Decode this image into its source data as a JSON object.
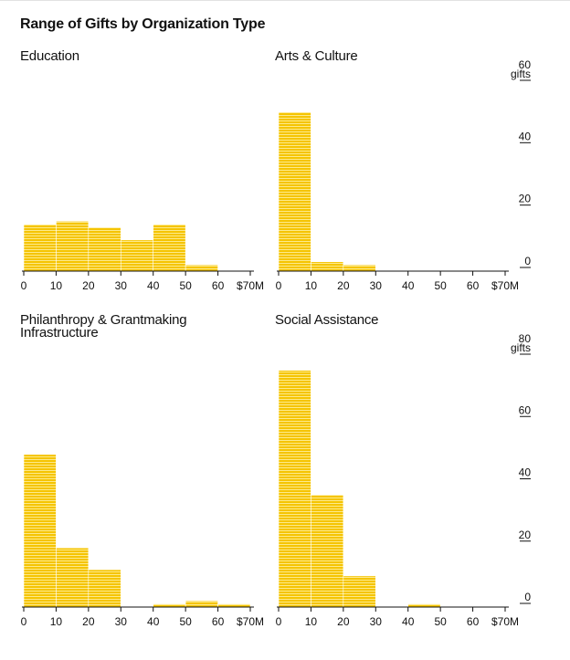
{
  "chart_data": {
    "type": "bar",
    "title": "Range of Gifts by Organization Type",
    "bar_color": "#f5c400",
    "bar_line_color": "#ffffff",
    "axis_color": "#111111",
    "x_ticks": [
      "0",
      "10",
      "20",
      "30",
      "40",
      "50",
      "60",
      "$70M"
    ],
    "panels": [
      {
        "name": "Education",
        "title_lines": [
          "Education"
        ],
        "bins": [
          [
            0,
            10
          ],
          [
            10,
            20
          ],
          [
            20,
            30
          ],
          [
            30,
            40
          ],
          [
            40,
            50
          ],
          [
            50,
            60
          ],
          [
            60,
            70
          ]
        ],
        "values": [
          15,
          16,
          14,
          10,
          15,
          2,
          0
        ],
        "ylim": [
          0,
          60
        ],
        "y_ticks": [],
        "y_unit": ""
      },
      {
        "name": "Arts & Culture",
        "title_lines": [
          "Arts & Culture"
        ],
        "bins": [
          [
            0,
            10
          ],
          [
            10,
            20
          ],
          [
            20,
            30
          ],
          [
            30,
            40
          ],
          [
            40,
            50
          ],
          [
            50,
            60
          ],
          [
            60,
            70
          ]
        ],
        "values": [
          51,
          3,
          2,
          0,
          0,
          0,
          0
        ],
        "ylim": [
          0,
          60
        ],
        "y_ticks": [
          "0",
          "20",
          "40",
          "60"
        ],
        "y_unit": "gifts"
      },
      {
        "name": "Philanthropy & Grantmaking Infrastructure",
        "title_lines": [
          "Philanthropy & Grantmaking",
          "Infrastructure"
        ],
        "bins": [
          [
            0,
            10
          ],
          [
            10,
            20
          ],
          [
            20,
            30
          ],
          [
            30,
            40
          ],
          [
            40,
            50
          ],
          [
            50,
            60
          ],
          [
            60,
            70
          ]
        ],
        "values": [
          49,
          19,
          12,
          0,
          1,
          2,
          1
        ],
        "ylim": [
          0,
          80
        ],
        "y_ticks": [],
        "y_unit": ""
      },
      {
        "name": "Social Assistance",
        "title_lines": [
          "Social Assistance"
        ],
        "bins": [
          [
            0,
            10
          ],
          [
            10,
            20
          ],
          [
            20,
            30
          ],
          [
            30,
            40
          ],
          [
            40,
            50
          ],
          [
            50,
            60
          ],
          [
            60,
            70
          ]
        ],
        "values": [
          76,
          36,
          10,
          0,
          1,
          0,
          0
        ],
        "ylim": [
          0,
          80
        ],
        "y_ticks": [
          "0",
          "20",
          "40",
          "60",
          "80"
        ],
        "y_unit": "gifts"
      }
    ]
  }
}
